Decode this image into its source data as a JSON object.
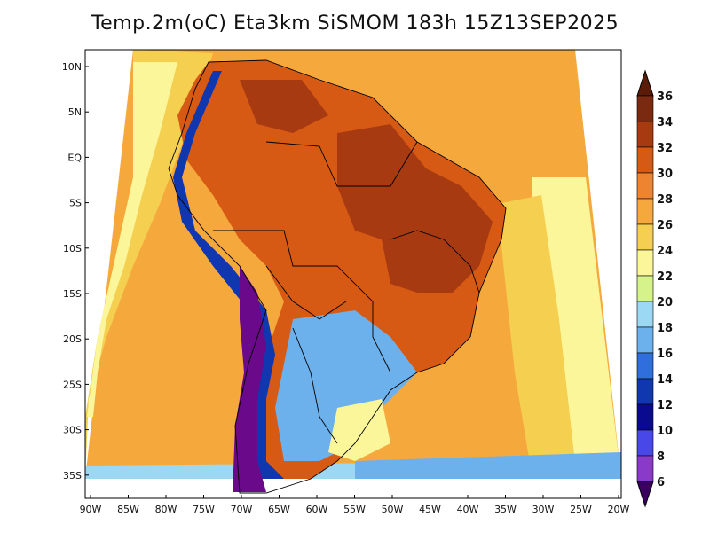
{
  "title": "Temp.2m(oC) Eta3km SiSMOM 183h 15Z13SEP2025",
  "map": {
    "lat_labels": [
      "10N",
      "5N",
      "EQ",
      "5S",
      "10S",
      "15S",
      "20S",
      "25S",
      "30S",
      "35S"
    ],
    "lon_labels": [
      "90W",
      "85W",
      "80W",
      "75W",
      "70W",
      "65W",
      "60W",
      "55W",
      "50W",
      "45W",
      "40W",
      "35W",
      "30W",
      "25W",
      "20W"
    ]
  },
  "colorbar": {
    "levels": [
      "36",
      "34",
      "32",
      "30",
      "28",
      "26",
      "24",
      "22",
      "20",
      "18",
      "16",
      "14",
      "12",
      "10",
      "8",
      "6"
    ],
    "colors": [
      "#7a2a10",
      "#a83a12",
      "#d65a14",
      "#ee8430",
      "#f5a83c",
      "#f5d050",
      "#fcf69a",
      "#d6f28a",
      "#9cd8f4",
      "#6cb0ec",
      "#2f6edc",
      "#1036b0",
      "#0a0a90",
      "#4848e8",
      "#8a3ac8",
      "#6a0a8a"
    ],
    "min_color": "#3a0060",
    "max_color": "#5a1c08"
  },
  "palette": {
    "ocean_warm": "#f5a83c",
    "ocean_hot": "#ee8430",
    "ocean_mild": "#f5d050",
    "ocean_cool": "#fcf69a",
    "ocean_cold": "#9cd8f4",
    "land_hot": "#d65a14",
    "land_very_hot": "#a83a12",
    "andes_cold": "#1036b0",
    "andes_coldest": "#6a0a8a",
    "south_cool": "#6cb0ec"
  }
}
